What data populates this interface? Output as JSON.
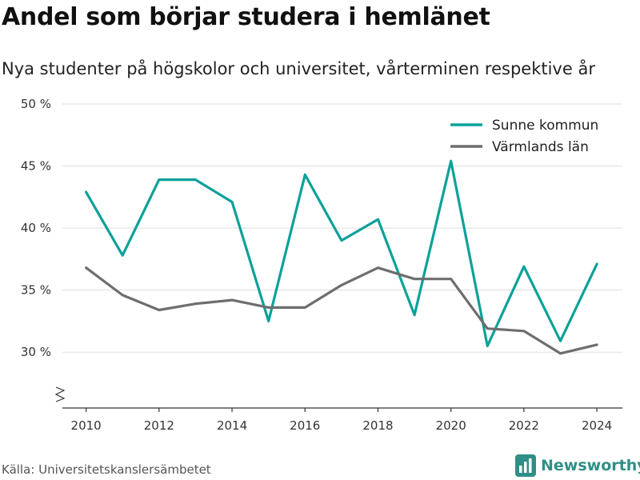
{
  "title": "Andel som börjar studera i hemlänet",
  "subtitle": "Nya studenter på högskolor och universitet, vårterminen respektive år",
  "source": "Källa: Universitetskanslersämbetet",
  "brand": {
    "name": "Newsworthy",
    "icon": "chart-bars-icon",
    "color": "#2f8f86"
  },
  "chart_data": {
    "type": "line",
    "x": [
      2010,
      2011,
      2012,
      2013,
      2014,
      2015,
      2016,
      2017,
      2018,
      2019,
      2020,
      2021,
      2022,
      2023,
      2024
    ],
    "series": [
      {
        "name": "Sunne kommun",
        "color": "#0ca199",
        "values": [
          42.9,
          37.8,
          43.9,
          43.9,
          42.1,
          32.5,
          44.3,
          39.0,
          40.7,
          33.0,
          45.4,
          30.5,
          36.9,
          30.9,
          37.1
        ]
      },
      {
        "name": "Värmlands län",
        "color": "#6e6e6e",
        "values": [
          36.8,
          34.6,
          33.4,
          33.9,
          34.2,
          33.6,
          33.6,
          35.4,
          36.8,
          35.9,
          35.9,
          31.9,
          31.7,
          29.9,
          30.6
        ]
      }
    ],
    "x_ticks": [
      2010,
      2012,
      2014,
      2016,
      2018,
      2020,
      2022,
      2024
    ],
    "y_ticks": [
      {
        "value": 30,
        "label": "30 %"
      },
      {
        "value": 35,
        "label": "35 %"
      },
      {
        "value": 40,
        "label": "40 %"
      },
      {
        "value": 45,
        "label": "45 %"
      },
      {
        "value": 50,
        "label": "50 %"
      }
    ],
    "ylim": [
      25.5,
      50
    ],
    "xlim": [
      2009.35,
      2024.7
    ],
    "grid": true,
    "y_axis_break": true,
    "legend_position": "top-right"
  }
}
